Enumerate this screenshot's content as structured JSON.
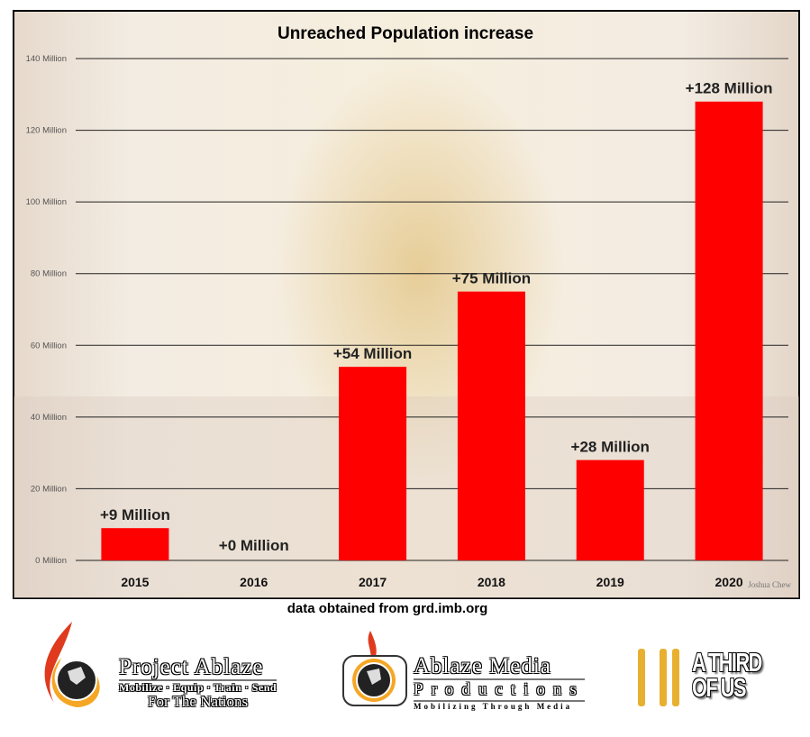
{
  "chart_data": {
    "type": "bar",
    "title": "Unreached Population increase",
    "categories": [
      "2015",
      "2016",
      "2017",
      "2018",
      "2019",
      "2020"
    ],
    "values": [
      9,
      0,
      54,
      75,
      28,
      128
    ],
    "data_labels": [
      "+9 Million",
      "+0 Million",
      "+54 Million",
      "+75 Million",
      "+28 Million",
      "+128 Million"
    ],
    "yticks": [
      0,
      20,
      40,
      60,
      80,
      100,
      120,
      140
    ],
    "ytick_labels": [
      "0 Million",
      "20 Million",
      "40 Million",
      "60 Million",
      "80 Million",
      "100 Million",
      "120 Million",
      "140 Million"
    ],
    "ylim": [
      0,
      140
    ],
    "xlabel": "",
    "ylabel": "",
    "grid": true,
    "bar_color": "#ff0000"
  },
  "source": "data obtained from grd.imb.org",
  "photo_credit": "Joshua Chew",
  "logos": {
    "project_ablaze": {
      "title": "Project Ablaze",
      "tagline": "Mobilize · Equip · Train · Send",
      "tagline2": "For The Nations"
    },
    "ablaze_media": {
      "title": "Ablaze Media",
      "subtitle": "Productions",
      "tagline": "Mobilizing Through Media"
    },
    "a_third_of_us": {
      "line1": "A THIRD",
      "line2": "OF US"
    }
  }
}
